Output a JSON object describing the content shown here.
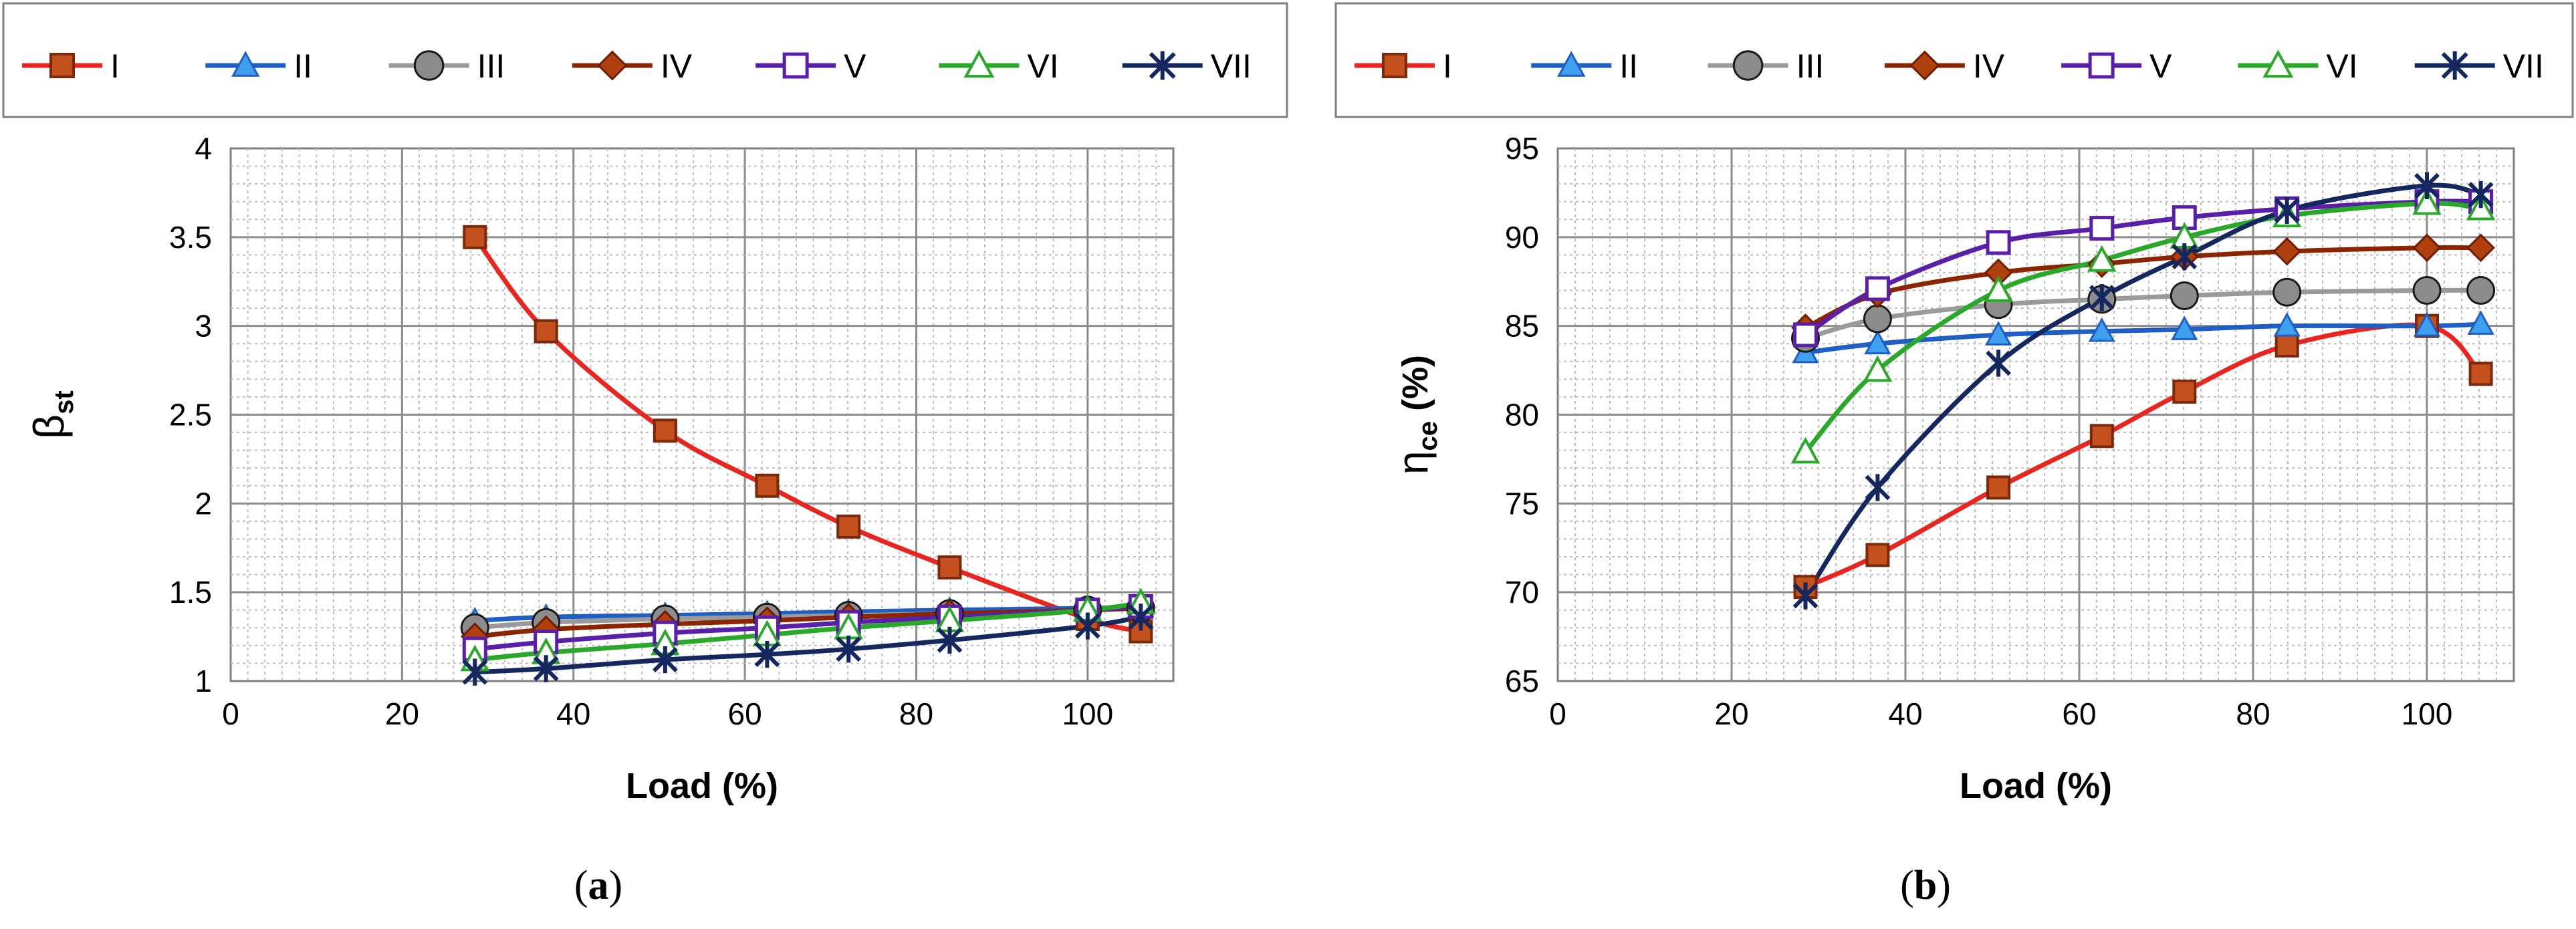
{
  "chart_data": [
    {
      "type": "line",
      "panel": "a",
      "caption_open": "(",
      "caption_letter": "a",
      "caption_close": ")",
      "xlabel": "Load (%)",
      "ylabel": "β",
      "ylabel_sub": "st",
      "xlim": [
        0,
        110
      ],
      "ylim": [
        1,
        4
      ],
      "xticks": [
        0,
        20,
        40,
        60,
        80,
        100
      ],
      "yticks": [
        1,
        1.5,
        2,
        2.5,
        3,
        3.5,
        4
      ],
      "ytick_labels": [
        "1",
        "1.5",
        "2",
        "2.5",
        "3",
        "3.5",
        "4"
      ],
      "legend_position": "top",
      "x": [
        28.5,
        36.8,
        50.7,
        62.6,
        72.1,
        83.9,
        100,
        106.2
      ],
      "series": [
        {
          "name": "I",
          "color": "#e8251f",
          "marker": "square",
          "values": [
            3.5,
            2.97,
            2.41,
            2.1,
            1.87,
            1.64,
            1.35,
            1.28
          ]
        },
        {
          "name": "II",
          "color": "#1f5fc4",
          "marker": "triangle",
          "values": [
            1.34,
            1.36,
            1.37,
            1.38,
            1.39,
            1.4,
            1.41,
            1.42
          ]
        },
        {
          "name": "III",
          "color": "#9a9a9a",
          "marker": "circle",
          "values": [
            1.3,
            1.33,
            1.35,
            1.36,
            1.37,
            1.38,
            1.4,
            1.41
          ]
        },
        {
          "name": "IV",
          "color": "#8b2500",
          "marker": "diamond",
          "values": [
            1.25,
            1.29,
            1.32,
            1.34,
            1.36,
            1.38,
            1.4,
            1.41
          ]
        },
        {
          "name": "V",
          "color": "#5a1fa8",
          "marker": "square-open",
          "values": [
            1.18,
            1.22,
            1.27,
            1.3,
            1.33,
            1.36,
            1.4,
            1.42
          ]
        },
        {
          "name": "VI",
          "color": "#2aa82a",
          "marker": "triangle-open",
          "values": [
            1.12,
            1.16,
            1.21,
            1.26,
            1.3,
            1.34,
            1.4,
            1.44
          ]
        },
        {
          "name": "VII",
          "color": "#14275e",
          "marker": "star",
          "values": [
            1.05,
            1.07,
            1.12,
            1.15,
            1.18,
            1.23,
            1.31,
            1.36
          ]
        }
      ]
    },
    {
      "type": "line",
      "panel": "b",
      "caption_open": "(",
      "caption_letter": "b",
      "caption_close": ")",
      "xlabel": "Load (%)",
      "ylabel": "η",
      "ylabel_sub": "ce",
      "ylabel_unit": " (%)",
      "xlim": [
        0,
        110
      ],
      "ylim": [
        65,
        95
      ],
      "xticks": [
        0,
        20,
        40,
        60,
        80,
        100
      ],
      "yticks": [
        65,
        70,
        75,
        80,
        85,
        90,
        95
      ],
      "ytick_labels": [
        "65",
        "70",
        "75",
        "80",
        "85",
        "90",
        "95"
      ],
      "legend_position": "top",
      "x": [
        28.5,
        36.8,
        50.7,
        62.6,
        72.1,
        83.9,
        100,
        106.2
      ],
      "series": [
        {
          "name": "I",
          "color": "#e8251f",
          "marker": "square",
          "values": [
            70.3,
            72.1,
            75.9,
            78.8,
            81.3,
            83.9,
            85.0,
            82.3
          ]
        },
        {
          "name": "II",
          "color": "#1f5fc4",
          "marker": "triangle",
          "values": [
            83.5,
            84.0,
            84.5,
            84.7,
            84.8,
            85.0,
            85.0,
            85.1
          ]
        },
        {
          "name": "III",
          "color": "#9a9a9a",
          "marker": "circle",
          "values": [
            84.3,
            85.4,
            86.2,
            86.5,
            86.7,
            86.9,
            87.0,
            87.0
          ]
        },
        {
          "name": "IV",
          "color": "#8b2500",
          "marker": "diamond",
          "values": [
            84.9,
            86.8,
            88.0,
            88.5,
            88.9,
            89.2,
            89.4,
            89.4
          ]
        },
        {
          "name": "V",
          "color": "#5a1fa8",
          "marker": "square-open",
          "values": [
            84.5,
            87.1,
            89.7,
            90.5,
            91.1,
            91.6,
            92.0,
            92.0
          ]
        },
        {
          "name": "VI",
          "color": "#2aa82a",
          "marker": "triangle-open",
          "values": [
            77.9,
            82.5,
            87.0,
            88.7,
            90.0,
            91.2,
            91.9,
            91.6
          ]
        },
        {
          "name": "VII",
          "color": "#14275e",
          "marker": "star",
          "values": [
            69.8,
            75.9,
            82.9,
            86.6,
            88.9,
            91.5,
            92.9,
            92.4
          ]
        }
      ]
    }
  ]
}
